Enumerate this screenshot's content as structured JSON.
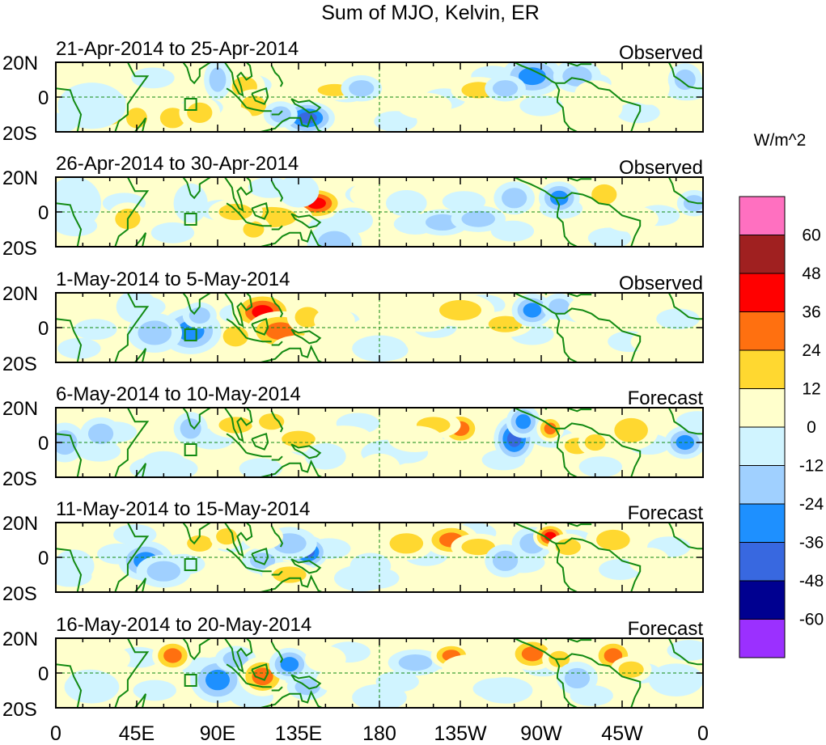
{
  "chart_data": {
    "type": "heatmap",
    "title": "Sum of MJO, Kelvin, ER",
    "x_tick_labels": [
      "0",
      "45E",
      "90E",
      "135E",
      "180",
      "135W",
      "90W",
      "45W",
      "0"
    ],
    "x_range_deg_east": [
      0,
      360
    ],
    "y_tick_labels": [
      "20N",
      "0",
      "20S"
    ],
    "y_range_deg_north": [
      -20,
      20
    ],
    "colorbar": {
      "units": "W/m^2",
      "labels": [
        "60",
        "48",
        "36",
        "24",
        "12",
        "0",
        "-12",
        "-24",
        "-36",
        "-48",
        "-60"
      ],
      "bounds": [
        -60,
        -48,
        -36,
        -24,
        -12,
        0,
        12,
        24,
        36,
        48,
        60
      ],
      "colors": [
        "#9b30ff",
        "#000090",
        "#3868e0",
        "#1e90ff",
        "#a0d0ff",
        "#d0f4ff",
        "#ffffcc",
        "#ffd830",
        "#ff7010",
        "#ff0000",
        "#a02020",
        "#ff70c0"
      ]
    },
    "panels": [
      {
        "title": "21-Apr-2014 to 25-Apr-2014",
        "type": "Observed",
        "blobs": [
          [
            30,
            -10,
            7,
            5,
            22
          ],
          [
            45,
            -12,
            5,
            5,
            16
          ],
          [
            65,
            -12,
            6,
            5,
            14
          ],
          [
            80,
            -9,
            6,
            5,
            24
          ],
          [
            105,
            6,
            6,
            5,
            22
          ],
          [
            110,
            -5,
            6,
            5,
            18
          ],
          [
            90,
            10,
            4,
            6,
            -16
          ],
          [
            140,
            -12,
            8,
            5,
            -38
          ],
          [
            125,
            -10,
            5,
            4,
            -20
          ],
          [
            100,
            -13,
            5,
            4,
            12
          ],
          [
            155,
            4,
            8,
            3,
            18
          ],
          [
            170,
            5,
            6,
            4,
            -14
          ],
          [
            200,
            8,
            6,
            3,
            10
          ],
          [
            205,
            -5,
            8,
            4,
            12
          ],
          [
            235,
            4,
            8,
            4,
            14
          ],
          [
            265,
            12,
            9,
            6,
            -28
          ],
          [
            250,
            5,
            6,
            4,
            -16
          ],
          [
            290,
            12,
            7,
            5,
            -24
          ],
          [
            300,
            2,
            6,
            4,
            10
          ],
          [
            300,
            -6,
            8,
            5,
            12
          ],
          [
            330,
            5,
            6,
            5,
            8
          ],
          [
            350,
            10,
            5,
            5,
            -14
          ],
          [
            20,
            -5,
            10,
            7,
            -10
          ]
        ]
      },
      {
        "title": "26-Apr-2014 to 30-Apr-2014",
        "type": "Observed",
        "blobs": [
          [
            145,
            5,
            8,
            5,
            40
          ],
          [
            120,
            -3,
            12,
            5,
            18
          ],
          [
            110,
            -10,
            5,
            4,
            16
          ],
          [
            100,
            0,
            8,
            4,
            14
          ],
          [
            135,
            12,
            6,
            5,
            -12
          ],
          [
            155,
            -18,
            8,
            6,
            -24
          ],
          [
            165,
            -5,
            6,
            4,
            -12
          ],
          [
            175,
            10,
            6,
            4,
            10
          ],
          [
            195,
            5,
            6,
            4,
            -12
          ],
          [
            215,
            -6,
            8,
            4,
            -14
          ],
          [
            235,
            -4,
            8,
            4,
            -18
          ],
          [
            255,
            8,
            6,
            5,
            -22
          ],
          [
            280,
            8,
            6,
            5,
            -26
          ],
          [
            305,
            10,
            6,
            5,
            14
          ],
          [
            320,
            -4,
            8,
            4,
            10
          ],
          [
            355,
            5,
            5,
            4,
            -20
          ],
          [
            40,
            -4,
            6,
            5,
            18
          ],
          [
            10,
            5,
            8,
            8,
            -10
          ],
          [
            75,
            5,
            5,
            6,
            -10
          ]
        ]
      },
      {
        "title": "1-May-2014 to 5-May-2014",
        "type": "Observed",
        "blobs": [
          [
            115,
            9,
            9,
            6,
            44
          ],
          [
            125,
            -2,
            10,
            6,
            30
          ],
          [
            140,
            6,
            6,
            5,
            22
          ],
          [
            100,
            -5,
            6,
            5,
            20
          ],
          [
            75,
            -2,
            9,
            7,
            -30
          ],
          [
            55,
            -3,
            8,
            6,
            -20
          ],
          [
            80,
            7,
            5,
            4,
            -22
          ],
          [
            135,
            -12,
            8,
            4,
            10
          ],
          [
            155,
            4,
            6,
            4,
            12
          ],
          [
            175,
            -2,
            6,
            4,
            10
          ],
          [
            205,
            5,
            8,
            4,
            10
          ],
          [
            225,
            10,
            10,
            5,
            16
          ],
          [
            250,
            2,
            8,
            4,
            14
          ],
          [
            265,
            10,
            6,
            5,
            -28
          ],
          [
            280,
            12,
            5,
            4,
            -22
          ],
          [
            300,
            10,
            8,
            5,
            10
          ],
          [
            320,
            6,
            6,
            4,
            12
          ],
          [
            335,
            -8,
            8,
            4,
            10
          ],
          [
            180,
            -12,
            8,
            4,
            -10
          ],
          [
            45,
            12,
            6,
            5,
            -12
          ]
        ]
      },
      {
        "title": "6-May-2014 to 10-May-2014",
        "type": "Forecast",
        "blobs": [
          [
            225,
            8,
            6,
            5,
            32
          ],
          [
            210,
            10,
            8,
            4,
            18
          ],
          [
            255,
            2,
            6,
            7,
            -40
          ],
          [
            260,
            12,
            5,
            5,
            -30
          ],
          [
            275,
            8,
            4,
            4,
            30
          ],
          [
            290,
            -2,
            6,
            4,
            16
          ],
          [
            300,
            0,
            5,
            4,
            20
          ],
          [
            320,
            7,
            8,
            6,
            14
          ],
          [
            350,
            0,
            6,
            5,
            -30
          ],
          [
            5,
            0,
            6,
            6,
            -22
          ],
          [
            25,
            5,
            6,
            5,
            -14
          ],
          [
            75,
            8,
            5,
            5,
            -24
          ],
          [
            100,
            10,
            8,
            4,
            22
          ],
          [
            120,
            12,
            6,
            4,
            16
          ],
          [
            135,
            2,
            8,
            4,
            14
          ],
          [
            160,
            4,
            8,
            3,
            10
          ],
          [
            150,
            -8,
            6,
            4,
            -12
          ],
          [
            185,
            -6,
            8,
            4,
            -12
          ],
          [
            200,
            2,
            8,
            4,
            12
          ],
          [
            180,
            -14,
            6,
            4,
            10
          ],
          [
            60,
            -15,
            10,
            4,
            -10
          ]
        ]
      },
      {
        "title": "11-May-2014 to 15-May-2014",
        "type": "Forecast",
        "blobs": [
          [
            140,
            3,
            6,
            5,
            -42
          ],
          [
            130,
            8,
            8,
            5,
            -24
          ],
          [
            115,
            -2,
            6,
            4,
            -18
          ],
          [
            130,
            -10,
            8,
            4,
            20
          ],
          [
            50,
            -2,
            8,
            6,
            -28
          ],
          [
            60,
            -8,
            8,
            5,
            -16
          ],
          [
            80,
            8,
            6,
            4,
            16
          ],
          [
            95,
            12,
            5,
            4,
            16
          ],
          [
            115,
            12,
            6,
            4,
            10
          ],
          [
            195,
            8,
            8,
            5,
            24
          ],
          [
            220,
            10,
            8,
            5,
            30
          ],
          [
            235,
            6,
            8,
            4,
            16
          ],
          [
            250,
            -2,
            6,
            5,
            -24
          ],
          [
            265,
            8,
            6,
            5,
            -22
          ],
          [
            275,
            12,
            5,
            4,
            38
          ],
          [
            285,
            6,
            6,
            4,
            20
          ],
          [
            310,
            10,
            8,
            5,
            24
          ],
          [
            330,
            -2,
            6,
            4,
            10
          ],
          [
            10,
            -5,
            6,
            5,
            -10
          ],
          [
            170,
            -12,
            8,
            4,
            -12
          ],
          [
            175,
            -5,
            6,
            4,
            -10
          ]
        ]
      },
      {
        "title": "16-May-2014 to 20-May-2014",
        "type": "Forecast",
        "blobs": [
          [
            65,
            10,
            6,
            5,
            28
          ],
          [
            90,
            -4,
            8,
            7,
            -32
          ],
          [
            100,
            8,
            6,
            4,
            -16
          ],
          [
            115,
            -2,
            7,
            6,
            26
          ],
          [
            130,
            5,
            6,
            5,
            -26
          ],
          [
            140,
            -8,
            6,
            4,
            -14
          ],
          [
            150,
            8,
            6,
            4,
            10
          ],
          [
            160,
            -4,
            8,
            4,
            12
          ],
          [
            200,
            6,
            8,
            4,
            -14
          ],
          [
            220,
            10,
            6,
            4,
            28
          ],
          [
            230,
            3,
            8,
            4,
            12
          ],
          [
            265,
            11,
            7,
            5,
            28
          ],
          [
            280,
            8,
            5,
            4,
            16
          ],
          [
            290,
            -3,
            6,
            5,
            -18
          ],
          [
            310,
            10,
            6,
            5,
            26
          ],
          [
            320,
            2,
            6,
            4,
            14
          ],
          [
            30,
            8,
            6,
            4,
            12
          ],
          [
            20,
            -8,
            8,
            5,
            -12
          ],
          [
            180,
            -14,
            8,
            4,
            -10
          ],
          [
            250,
            -10,
            8,
            4,
            -10
          ],
          [
            345,
            -4,
            8,
            5,
            -12
          ]
        ]
      }
    ]
  }
}
